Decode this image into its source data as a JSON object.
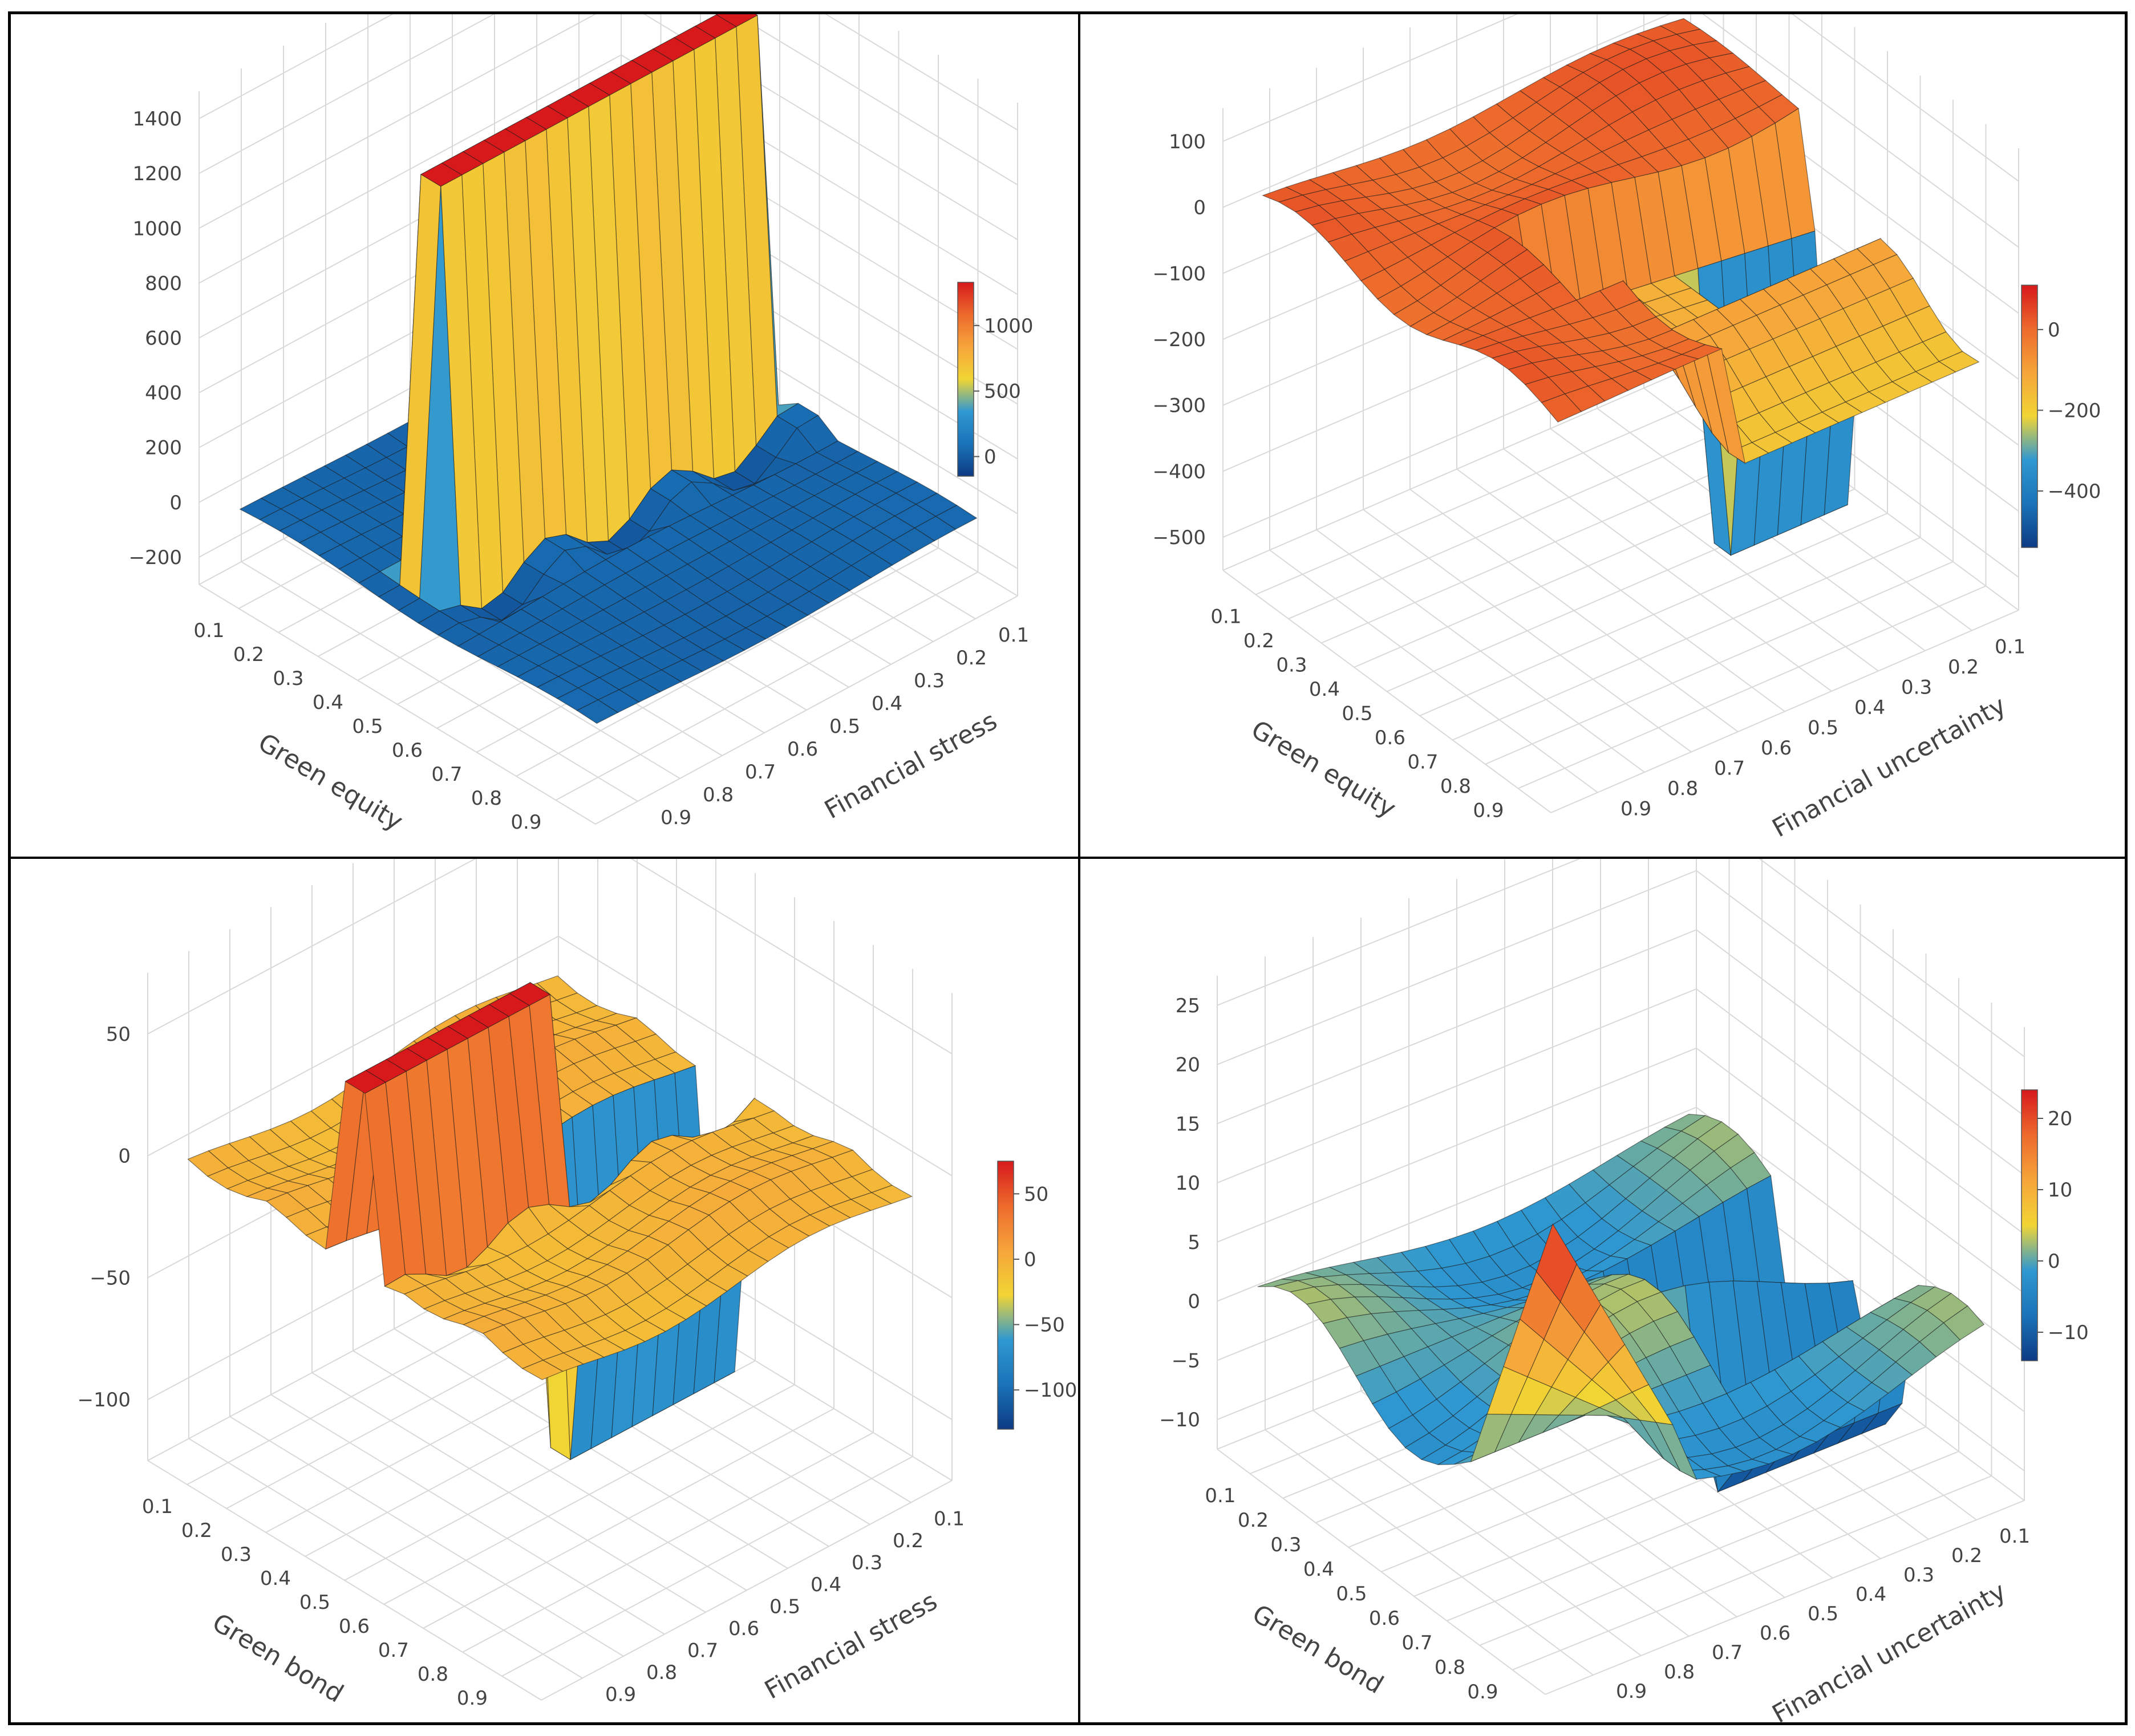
{
  "colors": {
    "low": "#0f3f8c",
    "mid": "#f1d534",
    "high": "#d7191c",
    "grid": "#d9d9d9",
    "border": "#000000",
    "mesh": "#1a1a1a"
  },
  "colorscale": [
    "#0d3b84",
    "#1a73b8",
    "#2f98d1",
    "#f1d534",
    "#f6a53a",
    "#ed6a2c",
    "#d7191c"
  ],
  "chart_data": [
    {
      "type": "surface3d",
      "id": "top-left",
      "xlabel": "Green equity",
      "ylabel": "Financial stress",
      "x_ticks": [
        "0.1",
        "0.2",
        "0.3",
        "0.4",
        "0.5",
        "0.6",
        "0.7",
        "0.8",
        "0.9"
      ],
      "y_ticks": [
        "0.1",
        "0.2",
        "0.3",
        "0.4",
        "0.5",
        "0.6",
        "0.7",
        "0.8",
        "0.9"
      ],
      "z_ticks": [
        "1400",
        "1200",
        "1000",
        "800",
        "600",
        "400",
        "200",
        "0",
        "−200"
      ],
      "zlim": [
        -200,
        1400
      ],
      "colorbar": {
        "range": [
          -150,
          1330
        ],
        "ticks": [
          {
            "value": 1000,
            "label": "1000"
          },
          {
            "value": 500,
            "label": "500"
          },
          {
            "value": 0,
            "label": "0"
          }
        ]
      },
      "surface": {
        "shape": "wall",
        "wall_x_range": [
          0.35,
          0.45
        ],
        "wall_height": 1330,
        "floor": 40,
        "trough": -150
      }
    },
    {
      "type": "surface3d",
      "id": "top-right",
      "xlabel": "Green equity",
      "ylabel": "Financial uncertainty",
      "x_ticks": [
        "0.1",
        "0.2",
        "0.3",
        "0.4",
        "0.5",
        "0.6",
        "0.7",
        "0.8",
        "0.9"
      ],
      "y_ticks": [
        "0.1",
        "0.2",
        "0.3",
        "0.4",
        "0.5",
        "0.6",
        "0.7",
        "0.8",
        "0.9"
      ],
      "z_ticks": [
        "100",
        "0",
        "−100",
        "−200",
        "−300",
        "−400",
        "−500"
      ],
      "zlim": [
        -550,
        150
      ],
      "colorbar": {
        "range": [
          -540,
          110
        ],
        "ticks": [
          {
            "value": 0,
            "label": "0"
          },
          {
            "value": -200,
            "label": "−200"
          },
          {
            "value": -400,
            "label": "−400"
          }
        ]
      },
      "surface": {
        "shape": "dip",
        "floor": 10,
        "dip_depth": -540
      }
    },
    {
      "type": "surface3d",
      "id": "bottom-left",
      "xlabel": "Green bond",
      "ylabel": "Financial stress",
      "x_ticks": [
        "0.1",
        "0.2",
        "0.3",
        "0.4",
        "0.5",
        "0.6",
        "0.7",
        "0.8",
        "0.9"
      ],
      "y_ticks": [
        "0.1",
        "0.2",
        "0.3",
        "0.4",
        "0.5",
        "0.6",
        "0.7",
        "0.8",
        "0.9"
      ],
      "z_ticks": [
        "50",
        "0",
        "−50",
        "−100"
      ],
      "zlim": [
        -130,
        80
      ],
      "colorbar": {
        "range": [
          -130,
          75
        ],
        "ticks": [
          {
            "value": 50,
            "label": "50"
          },
          {
            "value": 0,
            "label": "0"
          },
          {
            "value": -50,
            "label": "−50"
          },
          {
            "value": -100,
            "label": "−100"
          }
        ]
      },
      "surface": {
        "shape": "split-wall",
        "wall_high": 75,
        "wall_low": -130,
        "floor": 0
      }
    },
    {
      "type": "surface3d",
      "id": "bottom-right",
      "xlabel": "Green bond",
      "ylabel": "Financial uncertainty",
      "x_ticks": [
        "0.1",
        "0.2",
        "0.3",
        "0.4",
        "0.5",
        "0.6",
        "0.7",
        "0.8",
        "0.9"
      ],
      "y_ticks": [
        "0.1",
        "0.2",
        "0.3",
        "0.4",
        "0.5",
        "0.6",
        "0.7",
        "0.8",
        "0.9"
      ],
      "z_ticks": [
        "25",
        "20",
        "15",
        "10",
        "5",
        "0",
        "−5",
        "−10"
      ],
      "zlim": [
        -12,
        26
      ],
      "colorbar": {
        "range": [
          -14,
          24
        ],
        "ticks": [
          {
            "value": 20,
            "label": "20"
          },
          {
            "value": 10,
            "label": "10"
          },
          {
            "value": 0,
            "label": "0"
          },
          {
            "value": -10,
            "label": "−10"
          }
        ]
      },
      "surface": {
        "shape": "wavy",
        "peak": 24,
        "trough": -12
      }
    }
  ]
}
